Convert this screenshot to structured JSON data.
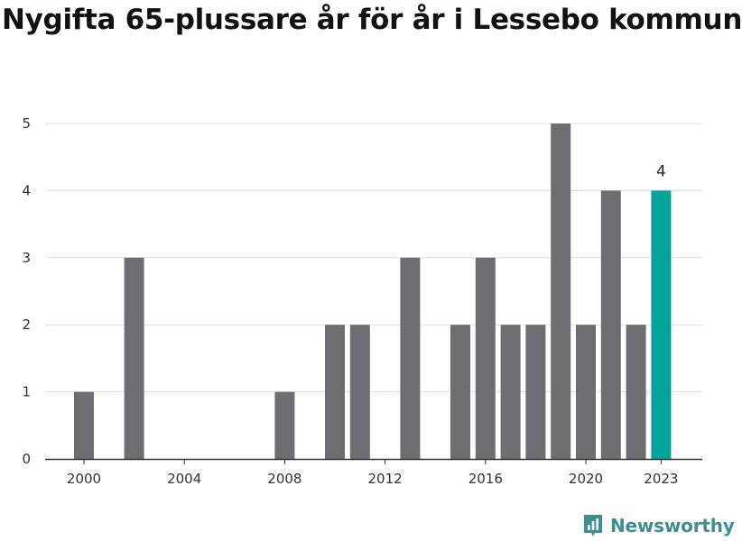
{
  "chart_data": {
    "type": "bar",
    "title": "Nygifta 65-plussare år för år i Lessebo kommun",
    "xlabel": "",
    "ylabel": "",
    "x": [
      2000,
      2001,
      2002,
      2003,
      2004,
      2005,
      2006,
      2007,
      2008,
      2009,
      2010,
      2011,
      2012,
      2013,
      2014,
      2015,
      2016,
      2017,
      2018,
      2019,
      2020,
      2021,
      2022,
      2023
    ],
    "values": [
      1,
      0,
      3,
      0,
      0,
      0,
      0,
      0,
      1,
      0,
      2,
      2,
      0,
      3,
      0,
      2,
      3,
      2,
      2,
      5,
      2,
      4,
      2,
      4
    ],
    "x_ticks": [
      "2000",
      "2004",
      "2008",
      "2012",
      "2016",
      "2020",
      "2023"
    ],
    "y_ticks": [
      0,
      1,
      2,
      3,
      4,
      5
    ],
    "ylim": [
      0,
      5
    ],
    "grid": true,
    "highlight": {
      "index": 23,
      "label": "4"
    },
    "colors": {
      "bar": "#6e6d72",
      "highlight": "#05a49b",
      "grid": "#dddddd",
      "axis": "#333333"
    }
  },
  "brand": {
    "name": "Newsworthy",
    "icon": "newsworthy-logo-icon"
  }
}
